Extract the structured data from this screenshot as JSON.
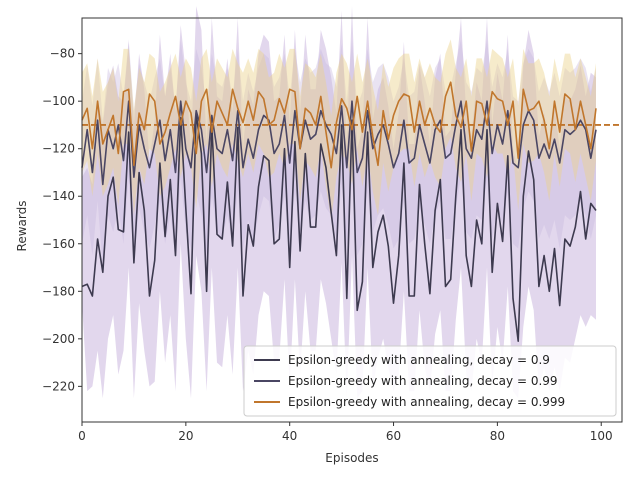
{
  "chart_data": {
    "type": "line",
    "title": "",
    "xlabel": "Episodes",
    "ylabel": "Rewards",
    "xlim": [
      0,
      104
    ],
    "ylim": [
      -235,
      -65
    ],
    "xticks": [
      0,
      20,
      40,
      60,
      80,
      100
    ],
    "yticks": [
      -220,
      -200,
      -180,
      -160,
      -140,
      -120,
      -100,
      -80
    ],
    "grid": false,
    "legend_position": "lower-right",
    "reference_line": {
      "y": -110,
      "color": "#c0762c",
      "style": "dashed"
    },
    "series": [
      {
        "name": "Epsilon-greedy with annealing, decay = 0.9",
        "color": "#3d3a4f",
        "band_color": "#b69ad2",
        "x": [
          0,
          1,
          2,
          3,
          4,
          5,
          6,
          7,
          8,
          9,
          10,
          11,
          12,
          13,
          14,
          15,
          16,
          17,
          18,
          19,
          20,
          21,
          22,
          23,
          24,
          25,
          26,
          27,
          28,
          29,
          30,
          31,
          32,
          33,
          34,
          35,
          36,
          37,
          38,
          39,
          40,
          41,
          42,
          43,
          44,
          45,
          46,
          47,
          48,
          49,
          50,
          51,
          52,
          53,
          54,
          55,
          56,
          57,
          58,
          59,
          60,
          61,
          62,
          63,
          64,
          65,
          66,
          67,
          68,
          69,
          70,
          71,
          72,
          73,
          74,
          75,
          76,
          77,
          78,
          79,
          80,
          81,
          82,
          83,
          84,
          85,
          86,
          87,
          88,
          89,
          90,
          91,
          92,
          93,
          94,
          95,
          96,
          97,
          98,
          99
        ],
        "y": [
          -178,
          -177,
          -182,
          -158,
          -172,
          -140,
          -132,
          -154,
          -155,
          -113,
          -168,
          -130,
          -146,
          -182,
          -167,
          -126,
          -157,
          -133,
          -165,
          -107,
          -145,
          -181,
          -105,
          -122,
          -180,
          -110,
          -156,
          -158,
          -134,
          -161,
          -111,
          -182,
          -152,
          -161,
          -136,
          -123,
          -125,
          -160,
          -158,
          -120,
          -170,
          -117,
          -163,
          -122,
          -153,
          -153,
          -118,
          -128,
          -147,
          -165,
          -110,
          -183,
          -108,
          -188,
          -176,
          -113,
          -170,
          -155,
          -148,
          -161,
          -185,
          -165,
          -126,
          -182,
          -182,
          -135,
          -160,
          -181,
          -146,
          -133,
          -178,
          -175,
          -140,
          -112,
          -165,
          -178,
          -150,
          -160,
          -112,
          -172,
          -143,
          -159,
          -123,
          -183,
          -201,
          -140,
          -121,
          -133,
          -178,
          -165,
          -180,
          -162,
          -186,
          -158,
          -161,
          -153,
          -138,
          -158,
          -143,
          -146
        ],
        "band_low": [
          -185,
          -222,
          -220,
          -205,
          -225,
          -200,
          -190,
          -215,
          -205,
          -170,
          -225,
          -185,
          -205,
          -220,
          -218,
          -180,
          -210,
          -190,
          -222,
          -160,
          -200,
          -225,
          -165,
          -180,
          -222,
          -170,
          -210,
          -212,
          -190,
          -215,
          -170,
          -222,
          -205,
          -215,
          -190,
          -180,
          -182,
          -210,
          -208,
          -175,
          -220,
          -175,
          -215,
          -180,
          -205,
          -205,
          -175,
          -185,
          -200,
          -215,
          -168,
          -225,
          -165,
          -225,
          -222,
          -170,
          -220,
          -208,
          -200,
          -212,
          -222,
          -215,
          -180,
          -222,
          -222,
          -188,
          -212,
          -222,
          -198,
          -188,
          -222,
          -222,
          -192,
          -170,
          -215,
          -222,
          -200,
          -210,
          -170,
          -220,
          -195,
          -210,
          -178,
          -222,
          -225,
          -195,
          -178,
          -188,
          -222,
          -212,
          -222,
          -212,
          -222,
          -208,
          -210,
          -200,
          -190,
          -195,
          -190,
          -192
        ],
        "band_high": [
          -132,
          -128,
          -135,
          -100,
          -110,
          -92,
          -85,
          -98,
          -100,
          -75,
          -110,
          -80,
          -95,
          -125,
          -108,
          -72,
          -98,
          -80,
          -105,
          -68,
          -88,
          -120,
          -60,
          -70,
          -118,
          -65,
          -98,
          -100,
          -82,
          -105,
          -65,
          -120,
          -95,
          -102,
          -80,
          -72,
          -75,
          -100,
          -98,
          -72,
          -110,
          -70,
          -105,
          -72,
          -95,
          -95,
          -70,
          -78,
          -90,
          -105,
          -62,
          -118,
          -60,
          -120,
          -112,
          -65,
          -108,
          -95,
          -90,
          -102,
          -120,
          -105,
          -75,
          -118,
          -118,
          -85,
          -100,
          -118,
          -90,
          -80,
          -115,
          -112,
          -88,
          -65,
          -105,
          -115,
          -92,
          -100,
          -65,
          -110,
          -88,
          -100,
          -72,
          -120,
          -130,
          -85,
          -70,
          -80,
          -115,
          -105,
          -118,
          -102,
          -120,
          -98,
          -100,
          -95,
          -85,
          -98,
          -88,
          -90
        ]
      },
      {
        "name": "Epsilon-greedy with annealing, decay = 0.99",
        "color": "#4a4663",
        "band_color": "#c7b8de",
        "x": [
          0,
          1,
          2,
          3,
          4,
          5,
          6,
          7,
          8,
          9,
          10,
          11,
          12,
          13,
          14,
          15,
          16,
          17,
          18,
          19,
          20,
          21,
          22,
          23,
          24,
          25,
          26,
          27,
          28,
          29,
          30,
          31,
          32,
          33,
          34,
          35,
          36,
          37,
          38,
          39,
          40,
          41,
          42,
          43,
          44,
          45,
          46,
          47,
          48,
          49,
          50,
          51,
          52,
          53,
          54,
          55,
          56,
          57,
          58,
          59,
          60,
          61,
          62,
          63,
          64,
          65,
          66,
          67,
          68,
          69,
          70,
          71,
          72,
          73,
          74,
          75,
          76,
          77,
          78,
          79,
          80,
          81,
          82,
          83,
          84,
          85,
          86,
          87,
          88,
          89,
          90,
          91,
          92,
          93,
          94,
          95,
          96,
          97,
          98,
          99
        ],
        "y": [
          -128,
          -112,
          -130,
          -108,
          -135,
          -112,
          -120,
          -110,
          -125,
          -100,
          -132,
          -110,
          -120,
          -128,
          -118,
          -108,
          -125,
          -112,
          -130,
          -100,
          -120,
          -128,
          -104,
          -112,
          -130,
          -106,
          -120,
          -122,
          -112,
          -125,
          -104,
          -128,
          -116,
          -124,
          -112,
          -106,
          -108,
          -122,
          -118,
          -106,
          -126,
          -104,
          -120,
          -108,
          -116,
          -114,
          -104,
          -110,
          -114,
          -122,
          -102,
          -128,
          -100,
          -130,
          -124,
          -104,
          -120,
          -114,
          -110,
          -118,
          -128,
          -122,
          -108,
          -126,
          -124,
          -110,
          -118,
          -126,
          -112,
          -108,
          -124,
          -122,
          -110,
          -100,
          -120,
          -124,
          -112,
          -116,
          -100,
          -122,
          -110,
          -118,
          -104,
          -126,
          -128,
          -110,
          -104,
          -108,
          -124,
          -118,
          -124,
          -116,
          -126,
          -112,
          -114,
          -112,
          -108,
          -112,
          -124,
          -112
        ],
        "band_low": [
          -160,
          -148,
          -165,
          -142,
          -170,
          -148,
          -155,
          -145,
          -160,
          -132,
          -168,
          -145,
          -155,
          -162,
          -152,
          -142,
          -160,
          -148,
          -165,
          -132,
          -155,
          -162,
          -138,
          -148,
          -165,
          -140,
          -155,
          -158,
          -148,
          -160,
          -138,
          -162,
          -150,
          -160,
          -148,
          -140,
          -142,
          -158,
          -152,
          -140,
          -162,
          -138,
          -155,
          -142,
          -150,
          -148,
          -138,
          -145,
          -148,
          -158,
          -135,
          -162,
          -132,
          -165,
          -160,
          -138,
          -155,
          -148,
          -145,
          -152,
          -162,
          -158,
          -142,
          -160,
          -158,
          -145,
          -152,
          -160,
          -148,
          -142,
          -158,
          -158,
          -145,
          -132,
          -155,
          -158,
          -148,
          -150,
          -132,
          -158,
          -145,
          -152,
          -138,
          -160,
          -162,
          -145,
          -138,
          -142,
          -158,
          -152,
          -158,
          -150,
          -162,
          -148,
          -150,
          -148,
          -142,
          -148,
          -158,
          -148
        ],
        "band_high": [
          -100,
          -85,
          -102,
          -82,
          -108,
          -86,
          -92,
          -84,
          -98,
          -74,
          -104,
          -84,
          -92,
          -100,
          -90,
          -82,
          -98,
          -86,
          -102,
          -74,
          -92,
          -100,
          -78,
          -86,
          -102,
          -80,
          -92,
          -94,
          -86,
          -98,
          -78,
          -100,
          -88,
          -96,
          -86,
          -80,
          -82,
          -94,
          -90,
          -80,
          -98,
          -78,
          -92,
          -82,
          -88,
          -86,
          -78,
          -84,
          -86,
          -94,
          -76,
          -100,
          -74,
          -102,
          -96,
          -78,
          -92,
          -86,
          -84,
          -90,
          -100,
          -94,
          -82,
          -98,
          -96,
          -84,
          -90,
          -98,
          -86,
          -82,
          -96,
          -94,
          -84,
          -74,
          -92,
          -96,
          -86,
          -88,
          -74,
          -94,
          -84,
          -90,
          -78,
          -98,
          -100,
          -84,
          -78,
          -82,
          -96,
          -90,
          -96,
          -88,
          -98,
          -86,
          -88,
          -86,
          -82,
          -86,
          -96,
          -86
        ]
      },
      {
        "name": "Epsilon-greedy with annealing, decay = 0.999",
        "color": "#c0762c",
        "band_color": "#ecd28c",
        "x": [
          0,
          1,
          2,
          3,
          4,
          5,
          6,
          7,
          8,
          9,
          10,
          11,
          12,
          13,
          14,
          15,
          16,
          17,
          18,
          19,
          20,
          21,
          22,
          23,
          24,
          25,
          26,
          27,
          28,
          29,
          30,
          31,
          32,
          33,
          34,
          35,
          36,
          37,
          38,
          39,
          40,
          41,
          42,
          43,
          44,
          45,
          46,
          47,
          48,
          49,
          50,
          51,
          52,
          53,
          54,
          55,
          56,
          57,
          58,
          59,
          60,
          61,
          62,
          63,
          64,
          65,
          66,
          67,
          68,
          69,
          70,
          71,
          72,
          73,
          74,
          75,
          76,
          77,
          78,
          79,
          80,
          81,
          82,
          83,
          84,
          85,
          86,
          87,
          88,
          89,
          90,
          91,
          92,
          93,
          94,
          95,
          96,
          97,
          98,
          99
        ],
        "y": [
          -108,
          -103,
          -120,
          -100,
          -118,
          -112,
          -106,
          -122,
          -96,
          -95,
          -127,
          -105,
          -112,
          -97,
          -100,
          -118,
          -113,
          -105,
          -98,
          -110,
          -100,
          -105,
          -122,
          -100,
          -95,
          -113,
          -100,
          -105,
          -110,
          -95,
          -103,
          -109,
          -100,
          -108,
          -96,
          -99,
          -110,
          -108,
          -99,
          -105,
          -95,
          -96,
          -120,
          -103,
          -105,
          -110,
          -98,
          -113,
          -128,
          -109,
          -99,
          -103,
          -112,
          -98,
          -113,
          -100,
          -115,
          -127,
          -104,
          -116,
          -106,
          -100,
          -97,
          -98,
          -113,
          -100,
          -110,
          -103,
          -110,
          -113,
          -98,
          -92,
          -106,
          -111,
          -100,
          -121,
          -100,
          -101,
          -110,
          -96,
          -99,
          -100,
          -110,
          -100,
          -124,
          -95,
          -104,
          -103,
          -100,
          -108,
          -120,
          -100,
          -113,
          -97,
          -99,
          -112,
          -100,
          -110,
          -120,
          -103
        ],
        "band_low": [
          -130,
          -125,
          -140,
          -122,
          -140,
          -135,
          -128,
          -144,
          -118,
          -118,
          -148,
          -128,
          -135,
          -120,
          -122,
          -140,
          -136,
          -128,
          -120,
          -132,
          -122,
          -128,
          -145,
          -122,
          -118,
          -136,
          -122,
          -128,
          -132,
          -118,
          -125,
          -132,
          -122,
          -130,
          -118,
          -122,
          -132,
          -130,
          -122,
          -128,
          -118,
          -118,
          -142,
          -125,
          -128,
          -132,
          -120,
          -136,
          -150,
          -132,
          -122,
          -125,
          -135,
          -120,
          -136,
          -122,
          -138,
          -148,
          -126,
          -138,
          -128,
          -122,
          -120,
          -120,
          -136,
          -122,
          -132,
          -125,
          -132,
          -136,
          -120,
          -115,
          -128,
          -134,
          -122,
          -142,
          -122,
          -124,
          -132,
          -118,
          -122,
          -122,
          -132,
          -122,
          -146,
          -118,
          -126,
          -125,
          -122,
          -130,
          -142,
          -122,
          -136,
          -120,
          -122,
          -134,
          -122,
          -132,
          -142,
          -125
        ],
        "band_high": [
          -88,
          -84,
          -98,
          -82,
          -96,
          -92,
          -86,
          -100,
          -78,
          -78,
          -104,
          -86,
          -92,
          -80,
          -82,
          -96,
          -92,
          -86,
          -80,
          -90,
          -82,
          -86,
          -100,
          -82,
          -78,
          -92,
          -82,
          -86,
          -90,
          -78,
          -84,
          -88,
          -82,
          -88,
          -78,
          -80,
          -90,
          -88,
          -80,
          -86,
          -78,
          -78,
          -98,
          -84,
          -86,
          -90,
          -80,
          -92,
          -106,
          -88,
          -80,
          -84,
          -92,
          -80,
          -92,
          -82,
          -94,
          -104,
          -84,
          -94,
          -86,
          -82,
          -80,
          -80,
          -92,
          -82,
          -90,
          -84,
          -90,
          -92,
          -80,
          -74,
          -86,
          -90,
          -82,
          -98,
          -82,
          -82,
          -90,
          -78,
          -80,
          -82,
          -90,
          -82,
          -102,
          -78,
          -84,
          -84,
          -82,
          -88,
          -98,
          -82,
          -92,
          -80,
          -80,
          -90,
          -82,
          -90,
          -98,
          -84
        ]
      }
    ]
  }
}
